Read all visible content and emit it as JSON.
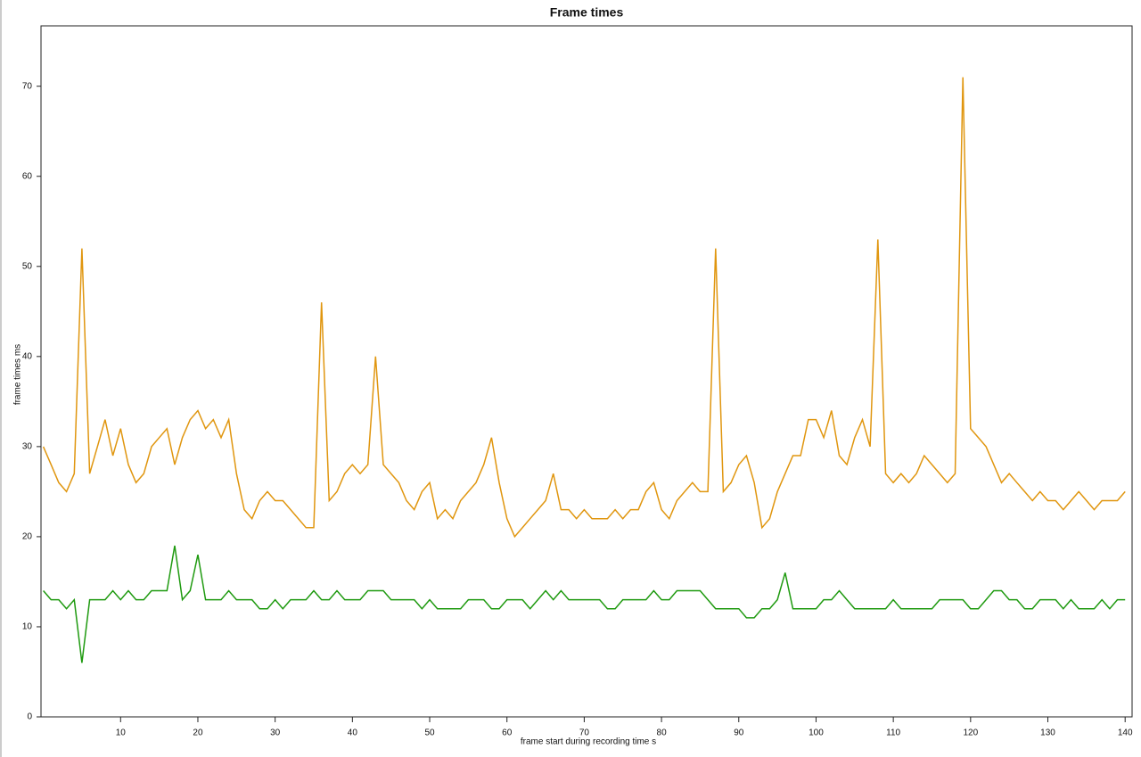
{
  "chart_data": {
    "type": "line",
    "title": "Frame times",
    "x_label": "frame start during recording time s",
    "y_label": "frame times ms",
    "x": [
      0,
      1,
      2,
      3,
      4,
      5,
      6,
      7,
      8,
      9,
      10,
      11,
      12,
      13,
      14,
      15,
      16,
      17,
      18,
      19,
      20,
      21,
      22,
      23,
      24,
      25,
      26,
      27,
      28,
      29,
      30,
      31,
      32,
      33,
      34,
      35,
      36,
      37,
      38,
      39,
      40,
      41,
      42,
      43,
      44,
      45,
      46,
      47,
      48,
      49,
      50,
      51,
      52,
      53,
      54,
      55,
      56,
      57,
      58,
      59,
      60,
      61,
      62,
      63,
      64,
      65,
      66,
      67,
      68,
      69,
      70,
      71,
      72,
      73,
      74,
      75,
      76,
      77,
      78,
      79,
      80,
      81,
      82,
      83,
      84,
      85,
      86,
      87,
      88,
      89,
      90,
      91,
      92,
      93,
      94,
      95,
      96,
      97,
      98,
      99,
      100,
      101,
      102,
      103,
      104,
      105,
      106,
      107,
      108,
      109,
      110,
      111,
      112,
      113,
      114,
      115,
      116,
      117,
      118,
      119,
      120,
      121,
      122,
      123,
      124,
      125,
      126,
      127,
      128,
      129,
      130,
      131,
      132,
      133,
      134,
      135,
      136,
      137,
      138,
      139,
      140
    ],
    "series": [
      {
        "color": "#e0960f",
        "values": [
          30,
          28,
          26,
          25,
          27,
          52,
          27,
          30,
          33,
          29,
          32,
          28,
          26,
          27,
          30,
          31,
          32,
          28,
          31,
          33,
          34,
          32,
          33,
          31,
          33,
          27,
          23,
          22,
          24,
          25,
          24,
          24,
          23,
          22,
          21,
          21,
          46,
          24,
          25,
          27,
          28,
          27,
          28,
          40,
          28,
          27,
          26,
          24,
          23,
          25,
          26,
          22,
          23,
          22,
          24,
          25,
          26,
          28,
          31,
          26,
          22,
          20,
          21,
          22,
          23,
          24,
          27,
          23,
          23,
          22,
          23,
          22,
          22,
          22,
          23,
          22,
          23,
          23,
          25,
          26,
          23,
          22,
          24,
          25,
          26,
          25,
          25,
          52,
          25,
          26,
          28,
          29,
          26,
          21,
          22,
          25,
          27,
          29,
          29,
          33,
          33,
          31,
          34,
          29,
          28,
          31,
          33,
          30,
          53,
          27,
          26,
          27,
          26,
          27,
          29,
          28,
          27,
          26,
          27,
          71,
          32,
          31,
          30,
          28,
          26,
          27,
          26,
          25,
          24,
          25,
          24,
          24,
          23,
          24,
          25,
          24,
          23,
          24,
          24,
          24,
          25
        ]
      },
      {
        "color": "#1f9a10",
        "values": [
          14,
          13,
          13,
          12,
          13,
          6,
          13,
          13,
          13,
          14,
          13,
          14,
          13,
          13,
          14,
          14,
          14,
          19,
          13,
          14,
          18,
          13,
          13,
          13,
          14,
          13,
          13,
          13,
          12,
          12,
          13,
          12,
          13,
          13,
          13,
          14,
          13,
          13,
          14,
          13,
          13,
          13,
          14,
          14,
          14,
          13,
          13,
          13,
          13,
          12,
          13,
          12,
          12,
          12,
          12,
          13,
          13,
          13,
          12,
          12,
          13,
          13,
          13,
          12,
          13,
          14,
          13,
          14,
          13,
          13,
          13,
          13,
          13,
          12,
          12,
          13,
          13,
          13,
          13,
          14,
          13,
          13,
          14,
          14,
          14,
          14,
          13,
          12,
          12,
          12,
          12,
          11,
          11,
          12,
          12,
          13,
          16,
          12,
          12,
          12,
          12,
          13,
          13,
          14,
          13,
          12,
          12,
          12,
          12,
          12,
          13,
          12,
          12,
          12,
          12,
          12,
          13,
          13,
          13,
          13,
          12,
          12,
          13,
          14,
          14,
          13,
          13,
          12,
          12,
          13,
          13,
          13,
          12,
          13,
          12,
          12,
          12,
          13,
          12,
          13,
          13
        ]
      }
    ],
    "xlim": [
      -0.3,
      140.9
    ],
    "ylim": [
      0,
      76.7
    ],
    "xticks": [
      10,
      20,
      30,
      40,
      50,
      60,
      70,
      80,
      90,
      100,
      110,
      120,
      130,
      140
    ],
    "yticks": [
      0,
      10,
      20,
      30,
      40,
      50,
      60,
      70
    ]
  }
}
